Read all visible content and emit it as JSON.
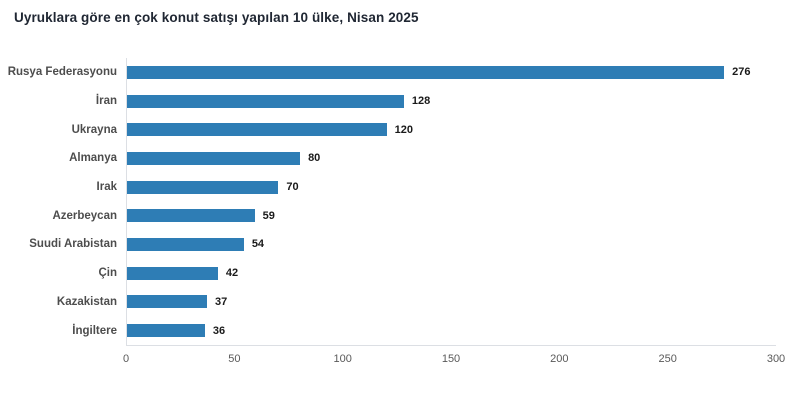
{
  "title": "Uyruklara göre en çok konut satışı yapılan 10 ülke, Nisan 2025",
  "chart_data": {
    "type": "bar",
    "orientation": "horizontal",
    "title": "Uyruklara göre en çok konut satışı yapılan 10 ülke, Nisan 2025",
    "categories": [
      "Rusya Federasyonu",
      "İran",
      "Ukrayna",
      "Almanya",
      "Irak",
      "Azerbeycan",
      "Suudi Arabistan",
      "Çin",
      "Kazakistan",
      "İngiltere"
    ],
    "values": [
      276,
      128,
      120,
      80,
      70,
      59,
      54,
      42,
      37,
      36
    ],
    "xlabel": "",
    "ylabel": "",
    "xlim": [
      0,
      300
    ],
    "x_ticks": [
      0,
      50,
      100,
      150,
      200,
      250,
      300
    ],
    "grid": false,
    "legend": "none",
    "data_labels": true,
    "colors": {
      "bar": "#2e7db5",
      "title": "#202733",
      "category_label": "#4d4d4d",
      "value_label": "#1a1a1a",
      "tick_label": "#595959",
      "axis_line": "#dcdfe4",
      "background": "#ffffff"
    }
  }
}
